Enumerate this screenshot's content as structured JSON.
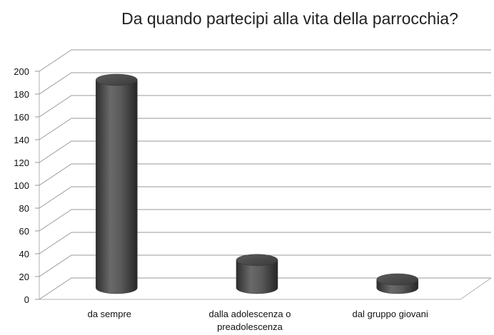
{
  "chart_data": {
    "type": "bar",
    "title": "Da quando partecipi alla vita della parrocchia?",
    "categories": [
      [
        "da sempre"
      ],
      [
        "dalla adolescenza o",
        "preadolescenza"
      ],
      [
        "dal gruppo giovani"
      ]
    ],
    "values": [
      190,
      32,
      15
    ],
    "ylim": [
      0,
      200
    ],
    "yticks": [
      0,
      20,
      40,
      60,
      80,
      100,
      120,
      140,
      160,
      180,
      200
    ],
    "grid": true,
    "bar_shape": "cylinder",
    "bar_color": "#505050"
  }
}
